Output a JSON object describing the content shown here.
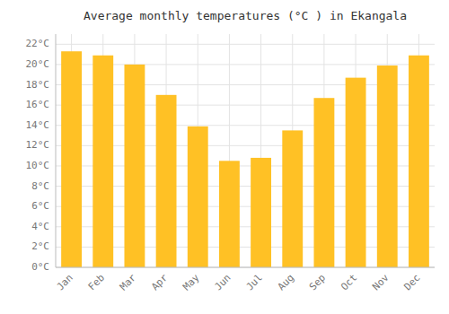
{
  "chart_data": {
    "type": "bar",
    "title": "Average monthly temperatures (°C ) in Ekangala",
    "categories": [
      "Jan",
      "Feb",
      "Mar",
      "Apr",
      "May",
      "Jun",
      "Jul",
      "Aug",
      "Sep",
      "Oct",
      "Nov",
      "Dec"
    ],
    "values": [
      21.3,
      20.9,
      20.0,
      17.0,
      13.9,
      10.5,
      10.8,
      13.5,
      16.7,
      18.7,
      19.9,
      20.9
    ],
    "color": "#FFC125",
    "ylim": [
      0,
      23
    ],
    "yticks": [
      {
        "value": 0,
        "label": "0°C"
      },
      {
        "value": 2,
        "label": "2°C"
      },
      {
        "value": 4,
        "label": "4°C"
      },
      {
        "value": 6,
        "label": "6°C"
      },
      {
        "value": 8,
        "label": "8°C"
      },
      {
        "value": 10,
        "label": "10°C"
      },
      {
        "value": 12,
        "label": "12°C"
      },
      {
        "value": 14,
        "label": "14°C"
      },
      {
        "value": 16,
        "label": "16°C"
      },
      {
        "value": 18,
        "label": "18°C"
      },
      {
        "value": 20,
        "label": "20°C"
      },
      {
        "value": 22,
        "label": "22°C"
      }
    ],
    "grid": true
  }
}
